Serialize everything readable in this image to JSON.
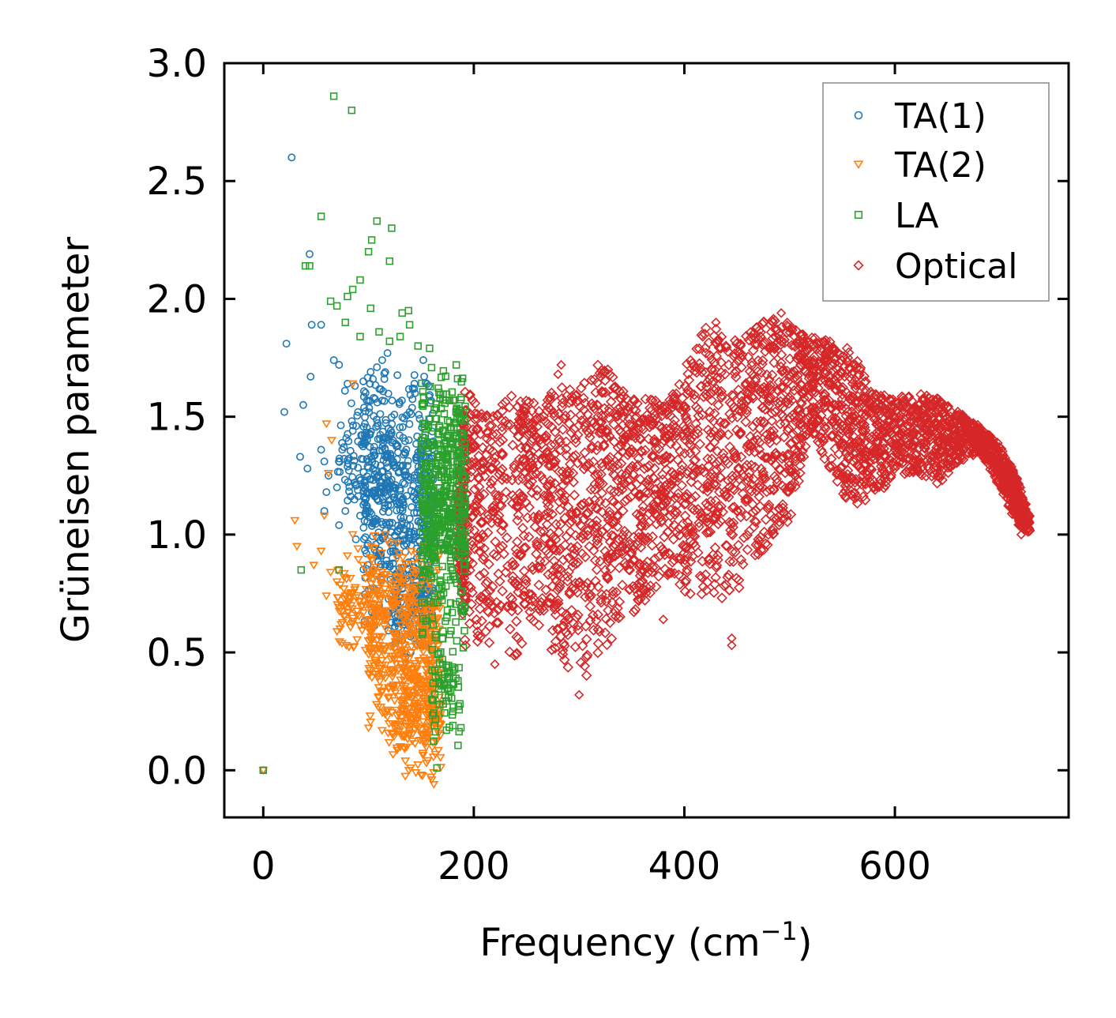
{
  "chart_data": {
    "type": "scatter",
    "title": "",
    "xlabel": "Frequency (cm",
    "xlabel_sup": "−1",
    "xlabel_close": ")",
    "ylabel": "Grüneisen parameter",
    "xlim": [
      -37,
      765
    ],
    "ylim": [
      -0.2,
      3.0
    ],
    "xticks": [
      {
        "value": 0,
        "label": "0"
      },
      {
        "value": 200,
        "label": "200"
      },
      {
        "value": 400,
        "label": "400"
      },
      {
        "value": 600,
        "label": "600"
      }
    ],
    "yticks": [
      {
        "value": 0.0,
        "label": "0.0"
      },
      {
        "value": 0.5,
        "label": "0.5"
      },
      {
        "value": 1.0,
        "label": "1.0"
      },
      {
        "value": 1.5,
        "label": "1.5"
      },
      {
        "value": 2.0,
        "label": "2.0"
      },
      {
        "value": 2.5,
        "label": "2.5"
      },
      {
        "value": 3.0,
        "label": "3.0"
      }
    ],
    "legend_position": "top-right",
    "series": [
      {
        "name": "TA(1)",
        "marker": "circle",
        "color": "#1f77b4",
        "points": [
          [
            0,
            0.0
          ],
          [
            27,
            2.6
          ],
          [
            22,
            1.81
          ],
          [
            44,
            2.19
          ],
          [
            46,
            1.89
          ],
          [
            55,
            1.89
          ],
          [
            45,
            1.67
          ],
          [
            38,
            1.55
          ],
          [
            20,
            1.52
          ],
          [
            35,
            1.33
          ],
          [
            42,
            1.28
          ],
          [
            55,
            1.36
          ],
          [
            58,
            1.31
          ],
          [
            62,
            1.25
          ],
          [
            60,
            1.18
          ],
          [
            58,
            1.1
          ],
          [
            67,
            1.74
          ],
          [
            72,
            1.72
          ],
          [
            80,
            1.64
          ],
          [
            95,
            1.65
          ],
          [
            102,
            1.69
          ],
          [
            108,
            1.71
          ],
          [
            113,
            1.74
          ],
          [
            118,
            1.77
          ],
          [
            115,
            1.66
          ],
          [
            105,
            1.58
          ],
          [
            90,
            1.52
          ],
          [
            85,
            1.44
          ],
          [
            75,
            1.36
          ],
          [
            70,
            1.2
          ],
          [
            78,
            1.1
          ],
          [
            92,
            1.08
          ],
          [
            72,
            1.04
          ],
          [
            88,
            0.98
          ],
          [
            98,
            0.92
          ],
          [
            105,
            0.85
          ],
          [
            102,
            0.77
          ],
          [
            110,
            0.7
          ],
          [
            118,
            0.67
          ],
          [
            125,
            0.61
          ],
          [
            132,
            0.55
          ],
          [
            140,
            0.5
          ],
          [
            135,
            0.48
          ],
          [
            143,
            0.56
          ],
          [
            150,
            0.62
          ],
          [
            155,
            0.7
          ],
          [
            160,
            0.82
          ]
        ],
        "clusters": [
          {
            "x_range": [
              95,
              162
            ],
            "y_range": [
              0.55,
              1.75
            ],
            "count": 520
          },
          {
            "x_range": [
              70,
              125
            ],
            "y_range": [
              1.0,
              1.65
            ],
            "count": 120
          },
          {
            "x_range": [
              125,
              162
            ],
            "y_range": [
              0.5,
              0.9
            ],
            "count": 120
          }
        ]
      },
      {
        "name": "TA(2)",
        "marker": "triangle_down",
        "color": "#ff7f0e",
        "points": [
          [
            0,
            0.0
          ],
          [
            30,
            1.06
          ],
          [
            32,
            0.95
          ],
          [
            48,
            0.87
          ],
          [
            55,
            0.93
          ],
          [
            58,
            1.08
          ],
          [
            60,
            0.74
          ],
          [
            64,
            0.84
          ],
          [
            70,
            0.8
          ],
          [
            73,
            0.6
          ],
          [
            78,
            0.74
          ],
          [
            80,
            0.91
          ],
          [
            85,
            1.0
          ],
          [
            90,
            0.94
          ],
          [
            95,
            0.87
          ],
          [
            97,
            0.7
          ],
          [
            100,
            0.55
          ],
          [
            108,
            0.42
          ],
          [
            112,
            0.33
          ],
          [
            118,
            0.25
          ],
          [
            125,
            0.18
          ],
          [
            130,
            0.1
          ],
          [
            135,
            0.04
          ],
          [
            140,
            0.01
          ],
          [
            145,
            -0.01
          ],
          [
            150,
            -0.02
          ],
          [
            155,
            0.03
          ],
          [
            160,
            -0.04
          ],
          [
            162,
            -0.06
          ],
          [
            60,
            1.47
          ],
          [
            65,
            1.4
          ],
          [
            62,
            1.26
          ],
          [
            85,
            1.64
          ]
        ],
        "clusters": [
          {
            "x_range": [
              100,
              168
            ],
            "y_range": [
              0.05,
              1.05
            ],
            "count": 520
          },
          {
            "x_range": [
              130,
              170
            ],
            "y_range": [
              -0.05,
              0.55
            ],
            "count": 150
          },
          {
            "x_range": [
              70,
              110
            ],
            "y_range": [
              0.45,
              0.95
            ],
            "count": 90
          }
        ]
      },
      {
        "name": "LA",
        "marker": "square",
        "color": "#2ca02c",
        "points": [
          [
            0,
            0.0
          ],
          [
            67,
            2.86
          ],
          [
            84,
            2.8
          ],
          [
            55,
            2.35
          ],
          [
            108,
            2.33
          ],
          [
            122,
            2.3
          ],
          [
            103,
            2.25
          ],
          [
            100,
            2.2
          ],
          [
            120,
            2.16
          ],
          [
            40,
            2.14
          ],
          [
            44,
            2.14
          ],
          [
            92,
            2.08
          ],
          [
            85,
            2.04
          ],
          [
            80,
            2.01
          ],
          [
            64,
            1.99
          ],
          [
            70,
            1.97
          ],
          [
            102,
            1.96
          ],
          [
            138,
            1.95
          ],
          [
            132,
            1.94
          ],
          [
            78,
            1.9
          ],
          [
            139,
            1.89
          ],
          [
            110,
            1.86
          ],
          [
            92,
            1.84
          ],
          [
            130,
            1.84
          ],
          [
            120,
            1.82
          ],
          [
            147,
            1.8
          ],
          [
            158,
            1.79
          ],
          [
            36,
            0.85
          ],
          [
            72,
            0.85
          ],
          [
            178,
            0.71
          ],
          [
            183,
            0.39
          ],
          [
            185,
            0.38
          ],
          [
            165,
            0.01
          ],
          [
            174,
            0.17
          ],
          [
            180,
            0.25
          ],
          [
            176,
            0.31
          ],
          [
            190,
            0.52
          ]
        ],
        "clusters": [
          {
            "x_range": [
              150,
              192
            ],
            "y_range": [
              0.55,
              1.75
            ],
            "count": 520
          },
          {
            "x_range": [
              160,
              188
            ],
            "y_range": [
              0.1,
              0.6
            ],
            "count": 70
          }
        ]
      },
      {
        "name": "Optical",
        "marker": "diamond",
        "color": "#d62728",
        "points": [
          [
            283,
            1.72
          ],
          [
            280,
            1.68
          ],
          [
            380,
            0.64
          ],
          [
            445,
            0.53
          ],
          [
            445,
            0.56
          ],
          [
            300,
            0.32
          ],
          [
            220,
            0.45
          ],
          [
            728,
            1.05
          ],
          [
            430,
            1.9
          ],
          [
            492,
            1.94
          ],
          [
            720,
            1.0
          ]
        ],
        "envelope": [
          [
            185,
            0.9,
            1.2
          ],
          [
            192,
            0.52,
            1.62
          ],
          [
            210,
            0.55,
            1.52
          ],
          [
            240,
            0.48,
            1.62
          ],
          [
            260,
            0.6,
            1.55
          ],
          [
            280,
            0.45,
            1.63
          ],
          [
            300,
            0.35,
            1.62
          ],
          [
            320,
            0.48,
            1.75
          ],
          [
            340,
            0.6,
            1.62
          ],
          [
            360,
            0.7,
            1.6
          ],
          [
            380,
            0.8,
            1.55
          ],
          [
            400,
            0.75,
            1.7
          ],
          [
            420,
            0.72,
            1.9
          ],
          [
            440,
            0.65,
            1.85
          ],
          [
            460,
            0.85,
            1.85
          ],
          [
            480,
            0.95,
            1.92
          ],
          [
            500,
            1.05,
            1.9
          ],
          [
            520,
            1.45,
            1.84
          ],
          [
            540,
            1.25,
            1.82
          ],
          [
            560,
            1.1,
            1.78
          ],
          [
            580,
            1.15,
            1.6
          ],
          [
            600,
            1.25,
            1.58
          ],
          [
            620,
            1.25,
            1.6
          ],
          [
            640,
            1.2,
            1.58
          ],
          [
            660,
            1.3,
            1.52
          ],
          [
            680,
            1.35,
            1.46
          ],
          [
            700,
            1.2,
            1.38
          ],
          [
            715,
            1.05,
            1.25
          ],
          [
            728,
            1.0,
            1.08
          ]
        ],
        "count": 3500
      }
    ]
  }
}
